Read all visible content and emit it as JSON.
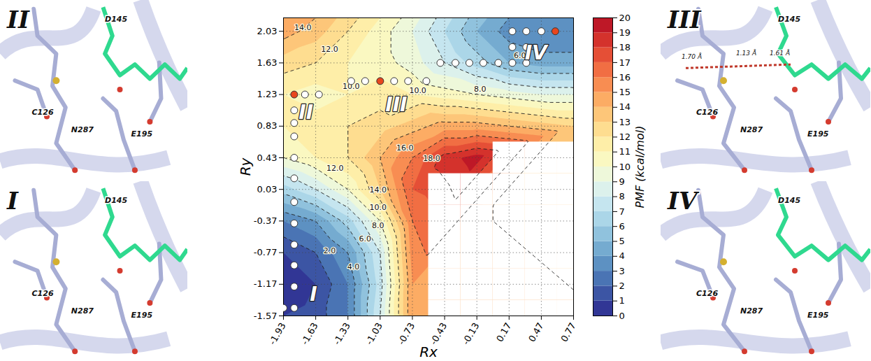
{
  "chart_data": {
    "type": "contour",
    "x_label": "Rx",
    "y_label": "Ry",
    "xlim": [
      -1.93,
      0.77
    ],
    "ylim": [
      -1.57,
      2.2
    ],
    "xticks": [
      -1.93,
      -1.63,
      -1.33,
      -1.03,
      -0.73,
      -0.43,
      -0.13,
      0.17,
      0.47,
      0.77
    ],
    "yticks": [
      -1.57,
      -1.17,
      -0.77,
      -0.37,
      0.03,
      0.43,
      0.83,
      1.23,
      1.63,
      2.03
    ],
    "grid": true,
    "pmf_x": [
      -1.93,
      -1.63,
      -1.33,
      -1.03,
      -0.73,
      -0.43,
      -0.13,
      0.17,
      0.47,
      0.77
    ],
    "pmf_y": [
      -1.57,
      -1.17,
      -0.77,
      -0.37,
      0.03,
      0.43,
      0.83,
      1.23,
      1.63,
      2.03,
      2.2
    ],
    "pmf": [
      [
        1,
        1.5,
        3,
        8,
        15,
        null,
        null,
        null,
        null,
        null
      ],
      [
        0,
        1,
        3,
        7.5,
        15,
        null,
        null,
        null,
        null,
        null
      ],
      [
        1,
        2,
        4,
        8,
        15.5,
        null,
        null,
        null,
        null,
        null
      ],
      [
        3,
        4,
        6.5,
        10,
        16,
        null,
        null,
        null,
        null,
        null
      ],
      [
        6.5,
        8,
        10,
        13,
        17,
        null,
        null,
        null,
        null,
        null
      ],
      [
        10,
        11,
        12,
        14,
        16,
        18.5,
        19.5,
        null,
        null,
        null
      ],
      [
        11,
        11.5,
        12,
        12.5,
        13.5,
        14.5,
        14.5,
        14,
        13.5,
        13
      ],
      [
        11,
        10.5,
        11,
        11.5,
        11,
        10.5,
        10,
        9.5,
        9,
        9
      ],
      [
        12.5,
        12,
        11,
        10.5,
        9.5,
        8,
        6.5,
        5,
        4.5,
        4.5
      ],
      [
        14.5,
        13.5,
        12,
        10.5,
        9,
        7,
        5,
        3.5,
        3,
        3
      ],
      [
        15,
        14,
        12.5,
        11,
        9.5,
        7.5,
        5.5,
        4,
        3.5,
        3.5
      ]
    ],
    "colorbar": {
      "label": "PMF (kcal/mol)",
      "range": [
        0,
        20
      ],
      "ticks": [
        0,
        1,
        2,
        3,
        4,
        5,
        6,
        7,
        8,
        9,
        10,
        11,
        12,
        13,
        14,
        15,
        16,
        17,
        18,
        19,
        20
      ]
    },
    "contour_lines": [
      2,
      4,
      6,
      8,
      10,
      12,
      14,
      16,
      18
    ],
    "contour_labels": [
      {
        "x": -1.75,
        "y": 2.08,
        "text": "14.0"
      },
      {
        "x": -1.5,
        "y": 1.8,
        "text": "12.0"
      },
      {
        "x": -1.3,
        "y": 1.33,
        "text": "10.0"
      },
      {
        "x": -0.68,
        "y": 1.28,
        "text": "10.0"
      },
      {
        "x": -0.1,
        "y": 1.3,
        "text": "8.0"
      },
      {
        "x": 0.27,
        "y": 1.72,
        "text": "6.0"
      },
      {
        "x": -1.5,
        "y": -0.75,
        "text": "2.0"
      },
      {
        "x": -1.28,
        "y": -0.95,
        "text": "4.0"
      },
      {
        "x": -1.17,
        "y": -0.6,
        "text": "6.0"
      },
      {
        "x": -1.05,
        "y": -0.43,
        "text": "8.0"
      },
      {
        "x": -1.05,
        "y": -0.2,
        "text": "10.0"
      },
      {
        "x": -1.45,
        "y": 0.3,
        "text": "12.0"
      },
      {
        "x": -1.05,
        "y": 0.02,
        "text": "14.0"
      },
      {
        "x": -0.8,
        "y": 0.55,
        "text": "16.0"
      },
      {
        "x": -0.55,
        "y": 0.42,
        "text": "18.0"
      }
    ],
    "path_points": {
      "x": [
        -1.93,
        -1.83,
        -1.83,
        -1.83,
        -1.83,
        -1.83,
        -1.83,
        -1.83,
        -1.83,
        -1.83,
        -1.83,
        -1.83,
        -1.83,
        -1.73,
        -1.6,
        -1.3,
        -1.17,
        -1.03,
        -0.9,
        -0.77,
        -0.6,
        -0.47,
        -0.33,
        -0.2,
        -0.07,
        0.07,
        0.2,
        0.33,
        0.2,
        0.33,
        0.2,
        0.33,
        0.47,
        0.6
      ],
      "y": [
        -1.47,
        -1.47,
        -1.2,
        -0.93,
        -0.67,
        -0.4,
        -0.13,
        0.17,
        0.43,
        0.7,
        0.87,
        1.03,
        1.23,
        1.23,
        1.23,
        1.4,
        1.4,
        1.4,
        1.4,
        1.4,
        1.4,
        1.63,
        1.63,
        1.63,
        1.63,
        1.63,
        1.63,
        1.63,
        1.83,
        1.83,
        2.03,
        2.03,
        2.03,
        2.03
      ],
      "colors": [
        "#ffffff",
        "#ffffff",
        "#ffffff",
        "#ffffff",
        "#ffffff",
        "#ffffff",
        "#ffffff",
        "#ffffff",
        "#ffffff",
        "#ffffff",
        "#ffffff",
        "#ffffff",
        "#e8461e",
        "#ffffff",
        "#ffffff",
        "#ffffff",
        "#ffffff",
        "#e8461e",
        "#ffffff",
        "#ffffff",
        "#ffffff",
        "#ffffff",
        "#ffffff",
        "#ffffff",
        "#ffffff",
        "#ffffff",
        "#ffffff",
        "#ffffff",
        "#ffffff",
        "#ffffff",
        "#ffffff",
        "#ffffff",
        "#ffffff",
        "#e8461e"
      ]
    },
    "state_labels": [
      {
        "x": -1.65,
        "y": -1.3,
        "text": "I"
      },
      {
        "x": -1.72,
        "y": 1.0,
        "text": "II"
      },
      {
        "x": -0.88,
        "y": 1.1,
        "text": "III"
      },
      {
        "x": 0.42,
        "y": 1.75,
        "text": "IV"
      }
    ]
  },
  "panels": [
    {
      "label": "II",
      "residues": [
        "D145",
        "C126",
        "N287",
        "E195"
      ]
    },
    {
      "label": "I",
      "residues": [
        "D145",
        "C126",
        "N287",
        "E195"
      ]
    },
    {
      "label": "III",
      "residues": [
        "D145",
        "C126",
        "N287",
        "E195"
      ],
      "distances": [
        "1.70 Å",
        "1.13 Å",
        "1.61 Å"
      ]
    },
    {
      "label": "IV",
      "residues": [
        "D145",
        "C126",
        "N287",
        "E195"
      ]
    }
  ]
}
